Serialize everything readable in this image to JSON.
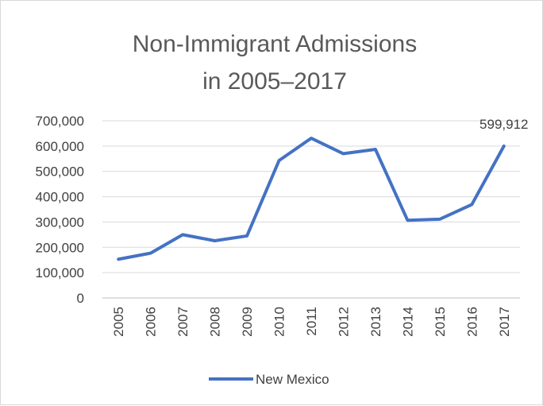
{
  "chart_data": {
    "type": "line",
    "title_lines": [
      "Non-Immigrant Admissions",
      "in 2005–2017"
    ],
    "xlabel": "",
    "ylabel": "",
    "categories": [
      "2005",
      "2006",
      "2007",
      "2008",
      "2009",
      "2010",
      "2011",
      "2012",
      "2013",
      "2014",
      "2015",
      "2016",
      "2017"
    ],
    "series": [
      {
        "name": "New Mexico",
        "color": "#4472c4",
        "values": [
          153000,
          177000,
          250000,
          226000,
          245000,
          543000,
          631000,
          570000,
          587000,
          307000,
          311000,
          369000,
          599912
        ]
      }
    ],
    "y_ticks": [
      "0",
      "100,000",
      "200,000",
      "300,000",
      "400,000",
      "500,000",
      "600,000",
      "700,000"
    ],
    "ylim": [
      0,
      700000
    ],
    "data_labels": [
      {
        "index": 12,
        "text": "599,912"
      }
    ],
    "grid": true,
    "legend_position": "bottom"
  }
}
